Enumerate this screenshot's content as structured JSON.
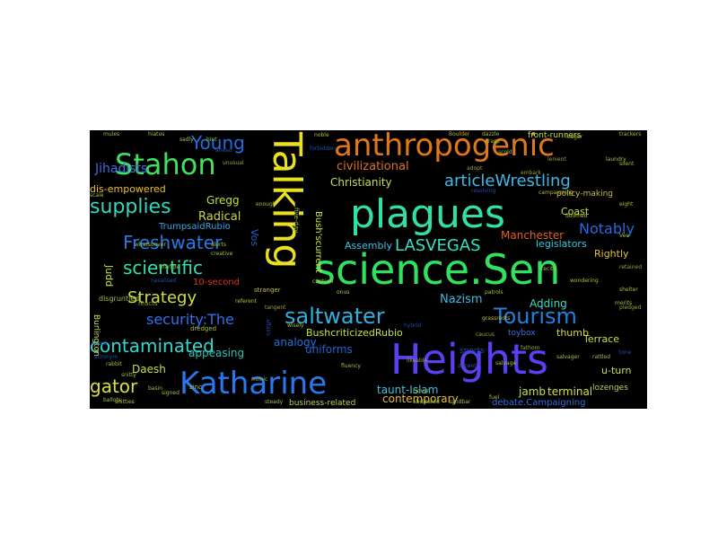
{
  "word_cloud": {
    "background": "#000000",
    "words": [
      {
        "text": "Talking",
        "color": "#e8e020"
      },
      {
        "text": "science.Sen",
        "color": "#30e060"
      },
      {
        "text": "plagues",
        "color": "#30e0a8"
      },
      {
        "text": "Heights",
        "color": "#5a40f0"
      },
      {
        "text": "anthropogenic",
        "color": "#e07818"
      },
      {
        "text": "Katharine",
        "color": "#2878f0"
      },
      {
        "text": "saltwater",
        "color": "#30b0e0"
      },
      {
        "text": "Tourism",
        "color": "#2080e0"
      },
      {
        "text": "Stahon",
        "color": "#40e060"
      },
      {
        "text": "articleWrestling",
        "color": "#40b8e8"
      },
      {
        "text": "supplies",
        "color": "#30d8c0"
      },
      {
        "text": "contaminated",
        "color": "#30d8d0"
      },
      {
        "text": "Freshwater",
        "color": "#2878e8"
      },
      {
        "text": "LASVEGAS",
        "color": "#30e0c8"
      },
      {
        "text": "scientific",
        "color": "#30e0b0"
      },
      {
        "text": "Young",
        "color": "#2070e0"
      },
      {
        "text": "Strategy",
        "color": "#d0e040"
      },
      {
        "text": "security:The",
        "color": "#3070e8"
      },
      {
        "text": "gator",
        "color": "#d8e040"
      },
      {
        "text": "Notably",
        "color": "#2868e0"
      },
      {
        "text": "civilizational",
        "color": "#e07020"
      },
      {
        "text": "Christianity",
        "color": "#c0e050"
      },
      {
        "text": "Jihadists",
        "color": "#4070e0"
      },
      {
        "text": "dis-empowered",
        "color": "#e8c030"
      },
      {
        "text": "Radical",
        "color": "#d0d840"
      },
      {
        "text": "Gregg",
        "color": "#c0e040"
      },
      {
        "text": "Manchester",
        "color": "#e06020"
      },
      {
        "text": "legislators",
        "color": "#30c8e0"
      },
      {
        "text": "Coast",
        "color": "#c8e040"
      },
      {
        "text": "Rightly",
        "color": "#e0c030"
      },
      {
        "text": "Assembly",
        "color": "#40c0e0"
      },
      {
        "text": "Adding",
        "color": "#40d8c0"
      },
      {
        "text": "Nazism",
        "color": "#40b8e0"
      },
      {
        "text": "analogy",
        "color": "#2070e0"
      },
      {
        "text": "BushcriticizedRubio",
        "color": "#c8e040"
      },
      {
        "text": "uniforms",
        "color": "#2060d8"
      },
      {
        "text": "appeasing",
        "color": "#30c0b0"
      },
      {
        "text": "taunt-Islam",
        "color": "#40c0e0"
      },
      {
        "text": "contemporary",
        "color": "#e0c030"
      },
      {
        "text": "Daesh",
        "color": "#c0e050"
      },
      {
        "text": "jamb",
        "color": "#c0e050"
      },
      {
        "text": "terminal",
        "color": "#d0e040"
      },
      {
        "text": "Terrace",
        "color": "#c0e040"
      },
      {
        "text": "thumb",
        "color": "#d8d840"
      },
      {
        "text": "10-second",
        "color": "#e03020"
      },
      {
        "text": "Burlington",
        "color": "#c8e040"
      },
      {
        "text": "Judd",
        "color": "#c8e040"
      },
      {
        "text": "Vos",
        "color": "#2060d0"
      },
      {
        "text": "Bush'scurrent",
        "color": "#d0e040"
      },
      {
        "text": "TrumpsaidRubio",
        "color": "#40a0e0"
      },
      {
        "text": "debate.Campaigning",
        "color": "#3070e0"
      },
      {
        "text": "u-turn",
        "color": "#c0e050"
      },
      {
        "text": "lozenges",
        "color": "#b0d850"
      },
      {
        "text": "front-runners",
        "color": "#c0e050"
      },
      {
        "text": "policy-making",
        "color": "#c0c040"
      },
      {
        "text": "business-related",
        "color": "#c0d050"
      },
      {
        "text": "toybox",
        "color": "#4070e0"
      },
      {
        "text": "sports",
        "color": "#2050b0"
      },
      {
        "text": "five-day",
        "color": "#a0c040"
      },
      {
        "text": "disgruntled",
        "color": "#a0c040"
      },
      {
        "text": "reacts",
        "color": "#a0a040"
      },
      {
        "text": "dredged",
        "color": "#a0c040"
      },
      {
        "text": "zinc",
        "color": "#a0c040"
      },
      {
        "text": "stranger",
        "color": "#c0c040"
      },
      {
        "text": "doomed",
        "color": "#c0c040"
      },
      {
        "text": "recite",
        "color": "#c0c040"
      },
      {
        "text": "trackers",
        "color": "#a0c040"
      },
      {
        "text": "campaigning",
        "color": "#b0b040"
      },
      {
        "text": "eight",
        "color": "#a0c040"
      },
      {
        "text": "nasalised",
        "color": "#2050b0"
      },
      {
        "text": "resolving",
        "color": "#2050b0"
      },
      {
        "text": "referent",
        "color": "#b0c040"
      },
      {
        "text": "cushion",
        "color": "#c0c040"
      },
      {
        "text": "Vee",
        "color": "#a0c040"
      },
      {
        "text": "retained",
        "color": "#a0a040"
      },
      {
        "text": "Boulder",
        "color": "#c0b030"
      },
      {
        "text": "shelter",
        "color": "#a0c040"
      },
      {
        "text": "pledged",
        "color": "#a0a040"
      },
      {
        "text": "decent",
        "color": "#3050b0"
      },
      {
        "text": "tone",
        "color": "#2050b0"
      },
      {
        "text": "merits",
        "color": "#a0c040"
      },
      {
        "text": "caucus",
        "color": "#a0a040"
      },
      {
        "text": "hybrid",
        "color": "#2050a0"
      },
      {
        "text": "fluency",
        "color": "#a0c040"
      },
      {
        "text": "onus",
        "color": "#b0c040"
      },
      {
        "text": "grassroots",
        "color": "#c0c040"
      },
      {
        "text": "wondering",
        "color": "#a0c040"
      },
      {
        "text": "likeable",
        "color": "#a0a040"
      },
      {
        "text": "silent",
        "color": "#a0c040"
      },
      {
        "text": "adopt",
        "color": "#a0a040"
      },
      {
        "text": "grasp",
        "color": "#a0c040"
      },
      {
        "text": "tangent",
        "color": "#a0a040"
      },
      {
        "text": "affairs",
        "color": "#2050b0"
      },
      {
        "text": "whatsoever",
        "color": "#a0c040"
      },
      {
        "text": "laundry",
        "color": "#b0c040"
      },
      {
        "text": "alerts",
        "color": "#a0c040"
      },
      {
        "text": "scale",
        "color": "#a0c040"
      },
      {
        "text": "ahead",
        "color": "#3050b0"
      },
      {
        "text": "wisely",
        "color": "#a0c040"
      },
      {
        "text": "fathom",
        "color": "#a0a040"
      },
      {
        "text": "mules",
        "color": "#a0c040"
      },
      {
        "text": "rabbit",
        "color": "#a0c040"
      },
      {
        "text": "ballots",
        "color": "#a0c040"
      },
      {
        "text": "creative",
        "color": "#a0c040"
      },
      {
        "text": "triangle",
        "color": "#a0c040"
      },
      {
        "text": "fuel",
        "color": "#a0c040"
      },
      {
        "text": "snitty",
        "color": "#a0c040"
      },
      {
        "text": "signed",
        "color": "#a0c040"
      },
      {
        "text": "forbidden",
        "color": "#2050b0"
      },
      {
        "text": "sadly",
        "color": "#a0c040"
      },
      {
        "text": "hint",
        "color": "#a0c040"
      },
      {
        "text": "unusual",
        "color": "#a0a040"
      },
      {
        "text": "enough",
        "color": "#a0c040"
      },
      {
        "text": "salvage",
        "color": "#a0c040"
      },
      {
        "text": "hiatus",
        "color": "#a0c040"
      },
      {
        "text": "snitties",
        "color": "#c0c040"
      },
      {
        "text": "salvager",
        "color": "#a0c040"
      },
      {
        "text": "lenient",
        "color": "#a0a040"
      },
      {
        "text": "dazzle",
        "color": "#a0c040"
      },
      {
        "text": "abdicated",
        "color": "#a0c040"
      },
      {
        "text": "scold",
        "color": "#a0c040"
      },
      {
        "text": "scope",
        "color": "#3050b0"
      },
      {
        "text": "mimic",
        "color": "#a0c040"
      },
      {
        "text": "basin",
        "color": "#a0c040"
      },
      {
        "text": "sandbar",
        "color": "#a0c040"
      },
      {
        "text": "embark",
        "color": "#a0a040"
      },
      {
        "text": "ledger",
        "color": "#a0c040"
      },
      {
        "text": "clover",
        "color": "#a0c040"
      },
      {
        "text": "patrols",
        "color": "#a0c040"
      },
      {
        "text": "acronym",
        "color": "#2050b0"
      },
      {
        "text": "rattled",
        "color": "#a0c040"
      },
      {
        "text": "steady",
        "color": "#a0c040"
      },
      {
        "text": "noble",
        "color": "#a0c040"
      }
    ]
  }
}
